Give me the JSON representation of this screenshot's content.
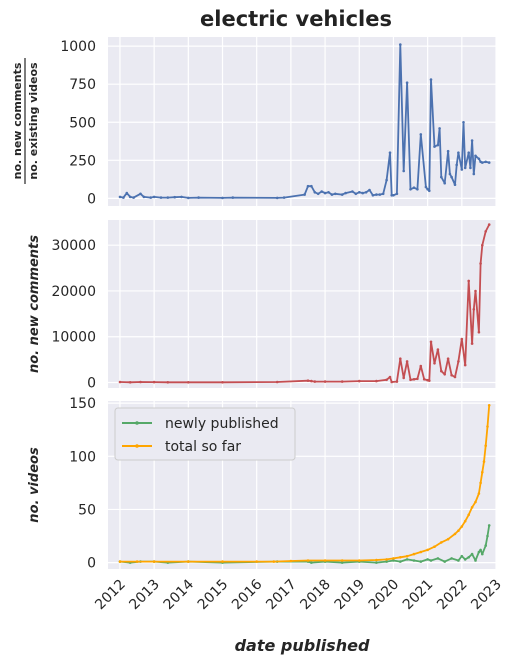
{
  "chart_data": {
    "title": "electric vehicles",
    "type": "line",
    "xlabel": "date published",
    "xlim": [
      2011.65,
      2023.0
    ],
    "xticks": [
      "2012",
      "2013",
      "2014",
      "2015",
      "2016",
      "2017",
      "2018",
      "2019",
      "2020",
      "2021",
      "2022",
      "2023"
    ],
    "panels": [
      {
        "ylabel_numerator": "no. new comments",
        "ylabel_denominator": "no. existing videos",
        "ylim": [
          -50,
          1060
        ],
        "yticks": [
          "0",
          "250",
          "500",
          "750",
          "1000"
        ],
        "series": [
          {
            "color": "#4c72b0",
            "x": [
              2012.0,
              2012.1,
              2012.2,
              2012.3,
              2012.4,
              2012.6,
              2012.7,
              2012.9,
              2013.0,
              2013.2,
              2013.4,
              2013.6,
              2013.8,
              2014.0,
              2014.3,
              2015.0,
              2015.3,
              2016.6,
              2016.8,
              2017.4,
              2017.5,
              2017.6,
              2017.7,
              2017.8,
              2017.9,
              2018.0,
              2018.1,
              2018.2,
              2018.3,
              2018.5,
              2018.6,
              2018.8,
              2018.9,
              2019.0,
              2019.1,
              2019.2,
              2019.3,
              2019.4,
              2019.5,
              2019.6,
              2019.7,
              2019.8,
              2019.9,
              2019.95,
              2020.0,
              2020.1,
              2020.2,
              2020.3,
              2020.4,
              2020.5,
              2020.6,
              2020.7,
              2020.8,
              2020.95,
              2021.0,
              2021.05,
              2021.1,
              2021.2,
              2021.3,
              2021.35,
              2021.4,
              2021.5,
              2021.6,
              2021.65,
              2021.7,
              2021.8,
              2021.85,
              2021.9,
              2022.0,
              2022.05,
              2022.1,
              2022.2,
              2022.25,
              2022.3,
              2022.35,
              2022.4,
              2022.5,
              2022.55,
              2022.6,
              2022.7,
              2022.8
            ],
            "y": [
              10,
              5,
              35,
              10,
              5,
              30,
              10,
              5,
              10,
              5,
              5,
              8,
              10,
              3,
              5,
              3,
              5,
              3,
              5,
              25,
              80,
              80,
              40,
              30,
              45,
              35,
              40,
              25,
              30,
              25,
              35,
              45,
              30,
              40,
              35,
              40,
              55,
              20,
              25,
              25,
              30,
              120,
              300,
              20,
              20,
              30,
              1010,
              180,
              760,
              60,
              70,
              60,
              420,
              75,
              60,
              50,
              780,
              340,
              350,
              460,
              140,
              100,
              310,
              160,
              140,
              90,
              220,
              300,
              190,
              500,
              200,
              300,
              200,
              380,
              160,
              280,
              260,
              240,
              235,
              240,
              235
            ]
          }
        ]
      },
      {
        "ylabel": "no. new comments",
        "ylim": [
          -1200,
          35500
        ],
        "yticks": [
          "0",
          "10000",
          "20000",
          "30000"
        ],
        "series": [
          {
            "color": "#c44e52",
            "x": [
              2012.0,
              2012.3,
              2012.6,
              2013.0,
              2013.4,
              2014.0,
              2015.0,
              2016.6,
              2017.5,
              2017.6,
              2017.7,
              2018.0,
              2018.5,
              2019.0,
              2019.5,
              2019.8,
              2019.9,
              2019.95,
              2020.1,
              2020.2,
              2020.3,
              2020.4,
              2020.5,
              2020.6,
              2020.7,
              2020.8,
              2020.9,
              2021.0,
              2021.05,
              2021.1,
              2021.2,
              2021.3,
              2021.4,
              2021.5,
              2021.6,
              2021.7,
              2021.8,
              2021.9,
              2022.0,
              2022.1,
              2022.2,
              2022.3,
              2022.35,
              2022.4,
              2022.5,
              2022.55,
              2022.6,
              2022.7,
              2022.8
            ],
            "y": [
              100,
              50,
              100,
              80,
              50,
              50,
              50,
              100,
              400,
              300,
              200,
              200,
              200,
              300,
              300,
              600,
              1200,
              100,
              200,
              5200,
              1000,
              4600,
              600,
              700,
              800,
              3600,
              700,
              500,
              400,
              8900,
              4200,
              7200,
              2500,
              1800,
              5200,
              1600,
              1200,
              4600,
              9500,
              3800,
              22200,
              8500,
              16000,
              20000,
              11000,
              26000,
              30000,
              33000,
              34500
            ]
          }
        ]
      },
      {
        "ylabel": "no. videos",
        "ylim": [
          -6,
          152
        ],
        "yticks": [
          "0",
          "50",
          "100",
          "150"
        ],
        "legend": {
          "placement": "top-left",
          "entries": [
            "newly published",
            "total so far"
          ]
        },
        "series": [
          {
            "name": "newly published",
            "color": "#55a868",
            "x": [
              2012.0,
              2012.3,
              2012.6,
              2013.0,
              2013.4,
              2014.0,
              2015.0,
              2016.6,
              2017.5,
              2017.6,
              2018.0,
              2018.5,
              2019.0,
              2019.5,
              2019.8,
              2020.0,
              2020.2,
              2020.4,
              2020.6,
              2020.8,
              2021.0,
              2021.1,
              2021.3,
              2021.5,
              2021.7,
              2021.9,
              2022.0,
              2022.1,
              2022.2,
              2022.3,
              2022.4,
              2022.5,
              2022.55,
              2022.6,
              2022.7,
              2022.75,
              2022.8
            ],
            "y": [
              1,
              0,
              1,
              1,
              0,
              1,
              0,
              1,
              1,
              0,
              1,
              0,
              1,
              0,
              1,
              2,
              1,
              3,
              2,
              1,
              3,
              2,
              4,
              1,
              4,
              2,
              6,
              3,
              5,
              8,
              2,
              10,
              12,
              8,
              16,
              25,
              35
            ]
          },
          {
            "name": "total so far",
            "color": "#ffa500",
            "x": [
              2012.0,
              2012.5,
              2013.0,
              2014.0,
              2015.0,
              2016.0,
              2016.5,
              2017.0,
              2017.5,
              2018.0,
              2018.5,
              2019.0,
              2019.5,
              2019.8,
              2020.0,
              2020.2,
              2020.4,
              2020.6,
              2020.8,
              2021.0,
              2021.2,
              2021.4,
              2021.6,
              2021.8,
              2021.9,
              2022.0,
              2022.1,
              2022.2,
              2022.3,
              2022.4,
              2022.5,
              2022.55,
              2022.6,
              2022.65,
              2022.7,
              2022.75,
              2022.8
            ],
            "y": [
              1,
              1,
              1,
              1,
              1,
              1,
              1,
              1.5,
              2,
              2,
              2,
              2,
              2.5,
              3,
              4,
              5,
              6,
              8,
              10,
              12,
              15,
              19,
              22,
              27,
              30,
              34,
              39,
              45,
              52,
              57,
              65,
              75,
              85,
              95,
              110,
              128,
              148
            ]
          }
        ]
      }
    ]
  }
}
